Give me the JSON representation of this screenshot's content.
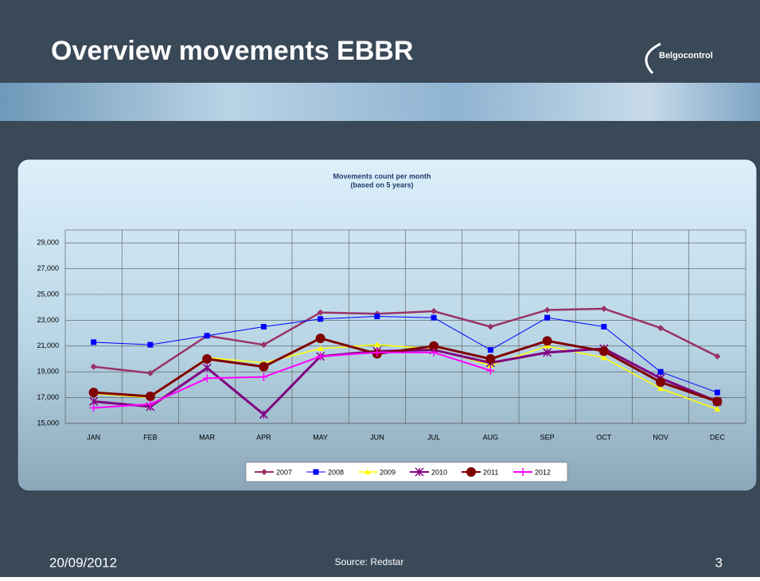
{
  "slide": {
    "title": "Overview movements EBBR",
    "logo": "Belgocontrol",
    "date": "20/09/2012",
    "source": "Source: Redstar",
    "page": "3"
  },
  "chart_data": {
    "type": "line",
    "title": "Movements count per month",
    "subtitle": "(based on 5 years)",
    "categories": [
      "JAN",
      "FEB",
      "MAR",
      "APR",
      "MAY",
      "JUN",
      "JUL",
      "AUG",
      "SEP",
      "OCT",
      "NOV",
      "DEC"
    ],
    "ylim": [
      15000,
      30000
    ],
    "yticks": [
      {
        "value": 15000,
        "label": "15,000"
      },
      {
        "value": 17000,
        "label": "17,000"
      },
      {
        "value": 19000,
        "label": "19,000"
      },
      {
        "value": 21000,
        "label": "21,000"
      },
      {
        "value": 23000,
        "label": "23,000"
      },
      {
        "value": 25000,
        "label": "25,000"
      },
      {
        "value": 27000,
        "label": "27,000"
      },
      {
        "value": 29000,
        "label": "29,000"
      }
    ],
    "grid": true,
    "legend": "bottom",
    "series": [
      {
        "name": "2007",
        "color": "#993366",
        "marker": "diamond",
        "width": 2.5,
        "values": [
          19400,
          18900,
          21800,
          21100,
          23600,
          23500,
          23700,
          22500,
          23800,
          23900,
          22400,
          20200
        ]
      },
      {
        "name": "2008",
        "color": "#0000ff",
        "marker": "square",
        "width": 1,
        "values": [
          21300,
          21100,
          21800,
          22500,
          23100,
          23300,
          23200,
          20700,
          23200,
          22500,
          19000,
          17400
        ]
      },
      {
        "name": "2009",
        "color": "#ffff00",
        "marker": "triangle",
        "width": 1.5,
        "values": [
          17300,
          17000,
          20100,
          19700,
          20800,
          21100,
          20800,
          19500,
          21000,
          20100,
          17700,
          16100
        ]
      },
      {
        "name": "2010",
        "color": "#800080",
        "marker": "cross",
        "width": 3,
        "values": [
          16700,
          16300,
          19300,
          15700,
          20200,
          20600,
          20700,
          19700,
          20500,
          20800,
          18500,
          16700
        ]
      },
      {
        "name": "2011",
        "color": "#800000",
        "marker": "circle",
        "width": 3,
        "values": [
          17400,
          17100,
          20000,
          19400,
          21600,
          20400,
          21000,
          20000,
          21400,
          20600,
          18200,
          16700
        ]
      },
      {
        "name": "2012",
        "color": "#ff00ff",
        "marker": "plus",
        "width": 2,
        "values": [
          16200,
          16500,
          18500,
          18600,
          20200,
          20500,
          20500,
          19100,
          null,
          null,
          null,
          null
        ]
      }
    ]
  }
}
